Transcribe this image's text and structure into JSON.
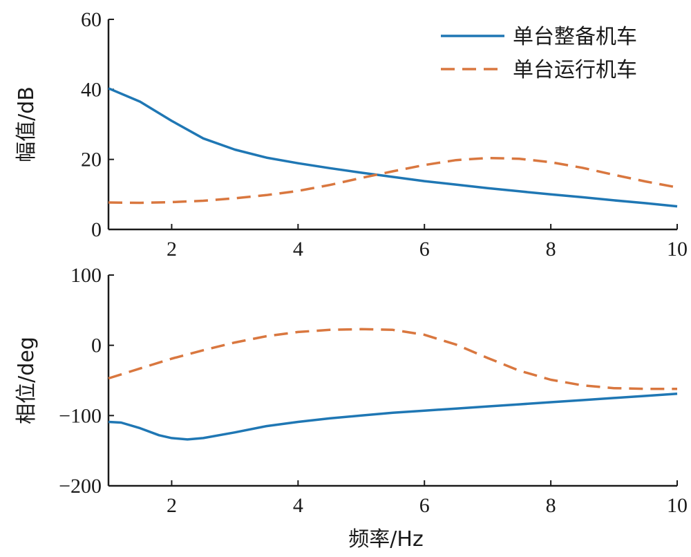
{
  "chart_data": [
    {
      "type": "line",
      "ylabel": "幅值/dB",
      "xlim": [
        1,
        10
      ],
      "ylim": [
        0,
        60
      ],
      "xticks": [
        2,
        4,
        6,
        8,
        10
      ],
      "xtick_labels": [
        "2",
        "4",
        "6",
        "8",
        "10"
      ],
      "yticks": [
        0,
        20,
        40,
        60
      ],
      "ytick_labels": [
        "0",
        "20",
        "40",
        "60"
      ],
      "legend": "top-right",
      "series": [
        {
          "name": "单台整备机车",
          "color": "#1f77b4",
          "style": "solid",
          "x": [
            1.0,
            1.5,
            2.0,
            2.5,
            3.0,
            3.5,
            4.0,
            4.5,
            5.0,
            5.5,
            6.0,
            6.5,
            7.0,
            7.5,
            8.0,
            8.5,
            9.0,
            9.5,
            10.0
          ],
          "y": [
            40.3,
            36.5,
            31.0,
            26.0,
            22.8,
            20.5,
            18.9,
            17.5,
            16.2,
            15.0,
            13.8,
            12.8,
            11.8,
            10.9,
            10.0,
            9.2,
            8.3,
            7.5,
            6.6
          ]
        },
        {
          "name": "单台运行机车",
          "color": "#d9773f",
          "style": "dashed",
          "x": [
            1.0,
            1.5,
            2.0,
            2.5,
            3.0,
            3.5,
            4.0,
            4.5,
            5.0,
            5.5,
            6.0,
            6.5,
            7.0,
            7.5,
            8.0,
            8.5,
            9.0,
            9.5,
            10.0
          ],
          "y": [
            7.7,
            7.6,
            7.8,
            8.2,
            8.9,
            9.8,
            11.0,
            12.7,
            14.7,
            16.6,
            18.4,
            19.8,
            20.4,
            20.2,
            19.2,
            17.6,
            15.6,
            13.7,
            12.0
          ]
        }
      ]
    },
    {
      "type": "line",
      "xlabel": "频率/Hz",
      "ylabel": "相位/deg",
      "xlim": [
        1,
        10
      ],
      "ylim": [
        -200,
        100
      ],
      "xticks": [
        2,
        4,
        6,
        8,
        10
      ],
      "xtick_labels": [
        "2",
        "4",
        "6",
        "8",
        "10"
      ],
      "yticks": [
        -200,
        -100,
        0,
        100
      ],
      "ytick_labels": [
        "−200",
        "−100",
        "0",
        "100"
      ],
      "series": [
        {
          "name": "单台整备机车",
          "color": "#1f77b4",
          "style": "solid",
          "x": [
            1.0,
            1.2,
            1.5,
            1.8,
            2.0,
            2.25,
            2.5,
            3.0,
            3.5,
            4.0,
            4.5,
            5.0,
            5.5,
            6.0,
            6.5,
            7.0,
            7.5,
            8.0,
            8.5,
            9.0,
            9.5,
            10.0
          ],
          "y": [
            -109,
            -110,
            -118,
            -128,
            -132,
            -134,
            -132,
            -124,
            -115,
            -109,
            -104,
            -100,
            -96,
            -93,
            -90,
            -87,
            -84,
            -81,
            -78,
            -75,
            -72,
            -69
          ]
        },
        {
          "name": "单台运行机车",
          "color": "#d9773f",
          "style": "dashed",
          "x": [
            1.0,
            1.5,
            2.0,
            2.5,
            3.0,
            3.5,
            4.0,
            4.5,
            5.0,
            5.5,
            6.0,
            6.5,
            7.0,
            7.5,
            8.0,
            8.5,
            9.0,
            9.5,
            10.0
          ],
          "y": [
            -47,
            -33,
            -19,
            -7,
            4,
            13,
            19,
            22,
            23,
            22,
            15,
            1,
            -18,
            -36,
            -49,
            -57,
            -61,
            -62,
            -62
          ]
        }
      ]
    }
  ]
}
